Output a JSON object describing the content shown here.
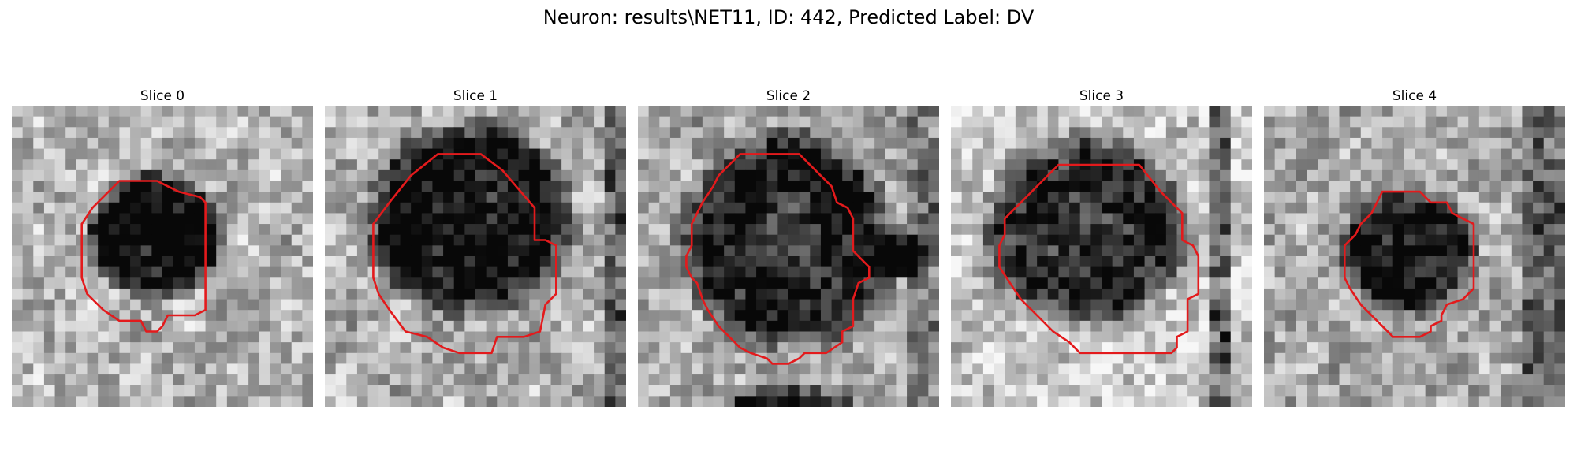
{
  "figure": {
    "title": "Neuron: results\\NET11, ID: 442, Predicted Label: DV",
    "contour_color": "#e31a1c"
  },
  "panels": [
    {
      "title": "Slice 0"
    },
    {
      "title": "Slice 1"
    },
    {
      "title": "Slice 2"
    },
    {
      "title": "Slice 3"
    },
    {
      "title": "Slice 4"
    }
  ]
}
